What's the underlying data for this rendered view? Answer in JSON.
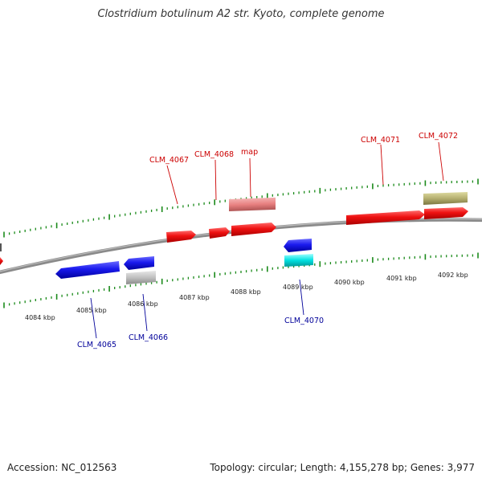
{
  "title": "Clostridium botulinum A2 str. Kyoto, complete genome",
  "footer": {
    "accession": "Accession: NC_012563",
    "summary": "Topology: circular; Length: 4,155,278 bp; Genes: 3,977"
  },
  "colors": {
    "backbone": "#808080",
    "tick": "#1a8a1a",
    "forward_gene": "#ee1111",
    "forward_label": "#cc0000",
    "reverse_gene": "#1a1aee",
    "reverse_label": "#000099",
    "rna": "#e88080",
    "pseudo": "#b5b070",
    "grey_feature": "#c0c0c0",
    "cyan_feature": "#00e0e0"
  },
  "gene_labels": [
    {
      "id": "CLM_4067",
      "text": "CLM_4067",
      "strand": "+"
    },
    {
      "id": "CLM_4068",
      "text": "CLM_4068",
      "strand": "+"
    },
    {
      "id": "map",
      "text": "map",
      "strand": "+"
    },
    {
      "id": "CLM_4071",
      "text": "CLM_4071",
      "strand": "+"
    },
    {
      "id": "CLM_4072",
      "text": "CLM_4072",
      "strand": "+"
    },
    {
      "id": "CLM_4065",
      "text": "CLM_4065",
      "strand": "-"
    },
    {
      "id": "CLM_4066",
      "text": "CLM_4066",
      "strand": "-"
    },
    {
      "id": "CLM_4070",
      "text": "CLM_4070",
      "strand": "-"
    }
  ],
  "scale_labels": [
    "4084 kbp",
    "4085 kbp",
    "4086 kbp",
    "4087 kbp",
    "4088 kbp",
    "4089 kbp",
    "4090 kbp",
    "4091 kbp",
    "4092 kbp"
  ]
}
